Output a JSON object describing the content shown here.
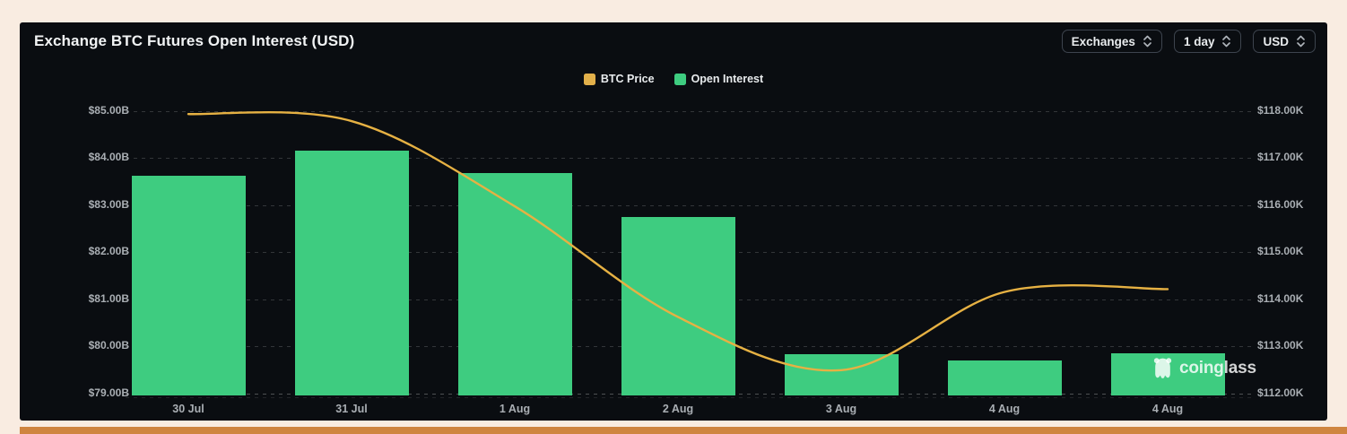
{
  "header": {
    "title": "Exchange BTC Futures Open Interest (USD)"
  },
  "controls": [
    {
      "id": "exchanges-dropdown",
      "label": "Exchanges"
    },
    {
      "id": "interval-dropdown",
      "label": "1 day"
    },
    {
      "id": "currency-dropdown",
      "label": "USD"
    }
  ],
  "legend": [
    {
      "label": "BTC Price",
      "color": "#e2b04a"
    },
    {
      "label": "Open Interest",
      "color": "#3ecc80"
    }
  ],
  "watermark": {
    "text": "coinglass"
  },
  "colors": {
    "page_background": "#f9ece1",
    "panel_background": "#0a0d11",
    "bar_green": "#3ecc80",
    "line_yellow": "#e6b143",
    "axis_text": "#a9aeb3",
    "bottom_banner_orange": "#cf8540"
  },
  "chart_data": {
    "type": "bar+line combo",
    "title": "Exchange BTC Futures Open Interest (USD)",
    "categories": [
      "30 Jul",
      "31 Jul",
      "1 Aug",
      "2 Aug",
      "3 Aug",
      "4 Aug",
      "4 Aug"
    ],
    "series": [
      {
        "name": "Open Interest",
        "type": "bar",
        "axis": "left",
        "color": "#3ecc80",
        "unit": "USD billions",
        "values": [
          83.62,
          84.15,
          83.67,
          82.74,
          79.82,
          79.7,
          79.84
        ]
      },
      {
        "name": "BTC Price",
        "type": "line",
        "axis": "right",
        "color": "#e6b143",
        "unit": "USD thousands",
        "values": [
          117.93,
          117.78,
          115.97,
          113.62,
          112.49,
          114.15,
          114.21
        ]
      }
    ],
    "left_axis": {
      "min": 79,
      "max": 85,
      "ticks": [
        "$85.00B",
        "$84.00B",
        "$83.00B",
        "$82.00B",
        "$81.00B",
        "$80.00B",
        "$79.00B"
      ]
    },
    "right_axis": {
      "min": 112,
      "max": 118,
      "ticks": [
        "$118.00K",
        "$117.00K",
        "$116.00K",
        "$115.00K",
        "$114.00K",
        "$113.00K",
        "$112.00K"
      ]
    },
    "grid": "horizontal dashed lines",
    "legend_position": "top center"
  }
}
